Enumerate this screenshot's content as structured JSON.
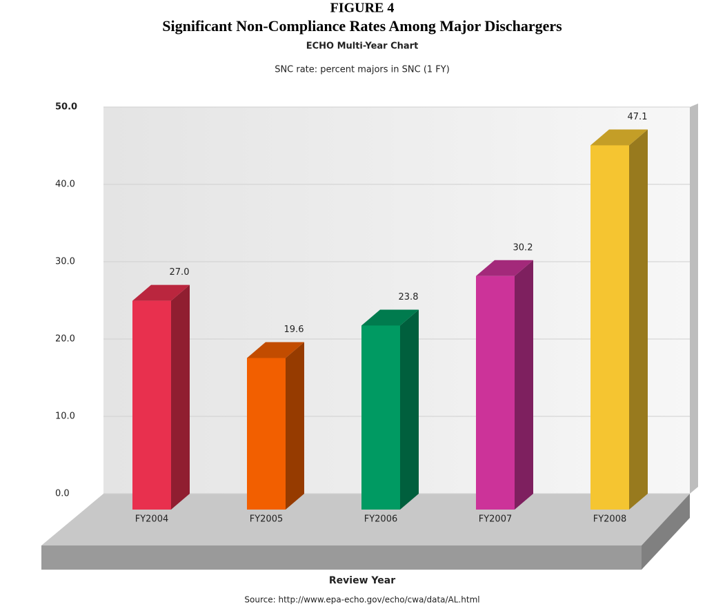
{
  "chart_data": {
    "type": "bar",
    "figure_label": "FIGURE 4",
    "title": "Significant Non-Compliance Rates Among Major Dischargers",
    "chart_title": "ECHO Multi-Year Chart",
    "subtitle": "SNC rate: percent majors in SNC (1 FY)",
    "x_label": "Review Year",
    "source": "Source:  http://www.epa-echo.gov/echo/cwa/data/AL.html",
    "categories": [
      "FY2004",
      "FY2005",
      "FY2006",
      "FY2007",
      "FY2008"
    ],
    "values": [
      27.0,
      19.6,
      23.8,
      30.2,
      47.1
    ],
    "value_labels": [
      "27.0",
      "19.6",
      "23.8",
      "30.2",
      "47.1"
    ],
    "colors": [
      "#e8304e",
      "#f25f00",
      "#009a62",
      "#cc3399",
      "#f5c531"
    ],
    "ylim": [
      0,
      50
    ],
    "yticks": [
      {
        "value": 0,
        "label": "0.0"
      },
      {
        "value": 10,
        "label": "10.0"
      },
      {
        "value": 20,
        "label": "20.0"
      },
      {
        "value": 30,
        "label": "30.0"
      },
      {
        "value": 40,
        "label": "40.0"
      },
      {
        "value": 50,
        "label": "50.0"
      }
    ],
    "grid": true
  }
}
